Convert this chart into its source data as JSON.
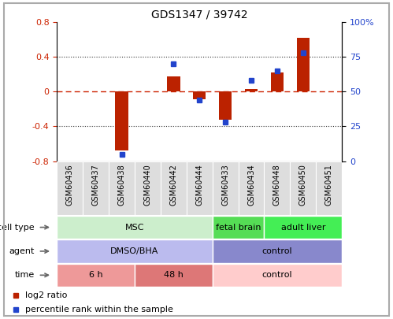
{
  "title": "GDS1347 / 39742",
  "samples": [
    "GSM60436",
    "GSM60437",
    "GSM60438",
    "GSM60440",
    "GSM60442",
    "GSM60444",
    "GSM60433",
    "GSM60434",
    "GSM60448",
    "GSM60450",
    "GSM60451"
  ],
  "log2_ratio_values": {
    "GSM60436": 0.0,
    "GSM60437": 0.0,
    "GSM60438": -0.68,
    "GSM60440": 0.0,
    "GSM60442": 0.18,
    "GSM60444": -0.09,
    "GSM60433": -0.32,
    "GSM60434": 0.03,
    "GSM60448": 0.22,
    "GSM60450": 0.62,
    "GSM60451": 0.0
  },
  "percentile_values": {
    "GSM60436": null,
    "GSM60437": null,
    "GSM60438": 5,
    "GSM60440": null,
    "GSM60442": 70,
    "GSM60444": 44,
    "GSM60433": 28,
    "GSM60434": 58,
    "GSM60448": 65,
    "GSM60450": 78,
    "GSM60451": null
  },
  "ylim_left": [
    -0.8,
    0.8
  ],
  "ylim_right": [
    0,
    100
  ],
  "yticks_left": [
    -0.8,
    -0.4,
    0.0,
    0.4,
    0.8
  ],
  "ytick_labels_left": [
    "-0.8",
    "-0.4",
    "0",
    "0.4",
    "0.8"
  ],
  "yticks_right": [
    0,
    25,
    50,
    75,
    100
  ],
  "ytick_labels_right": [
    "0",
    "25",
    "50",
    "75",
    "100%"
  ],
  "bar_color": "#bb2200",
  "dot_color": "#2244cc",
  "zero_line_color": "#cc2200",
  "grid_color": "#333333",
  "cell_type_groups": [
    {
      "label": "MSC",
      "start": 0,
      "end": 5,
      "color": "#cceecc"
    },
    {
      "label": "fetal brain",
      "start": 6,
      "end": 7,
      "color": "#55dd55"
    },
    {
      "label": "adult liver",
      "start": 8,
      "end": 10,
      "color": "#44ee55"
    }
  ],
  "agent_groups": [
    {
      "label": "DMSO/BHA",
      "start": 0,
      "end": 5,
      "color": "#bbbbee"
    },
    {
      "label": "control",
      "start": 6,
      "end": 10,
      "color": "#8888cc"
    }
  ],
  "time_groups": [
    {
      "label": "6 h",
      "start": 0,
      "end": 2,
      "color": "#ee9999"
    },
    {
      "label": "48 h",
      "start": 3,
      "end": 5,
      "color": "#dd7777"
    },
    {
      "label": "control",
      "start": 6,
      "end": 10,
      "color": "#ffcccc"
    }
  ],
  "row_labels": [
    "cell type",
    "agent",
    "time"
  ],
  "legend_bar_label": "log2 ratio",
  "legend_dot_label": "percentile rank within the sample",
  "bg_color": "#ffffff",
  "tick_label_color_left": "#cc2200",
  "tick_label_color_right": "#2244cc",
  "border_color": "#aaaaaa",
  "sample_bg_color": "#dddddd"
}
